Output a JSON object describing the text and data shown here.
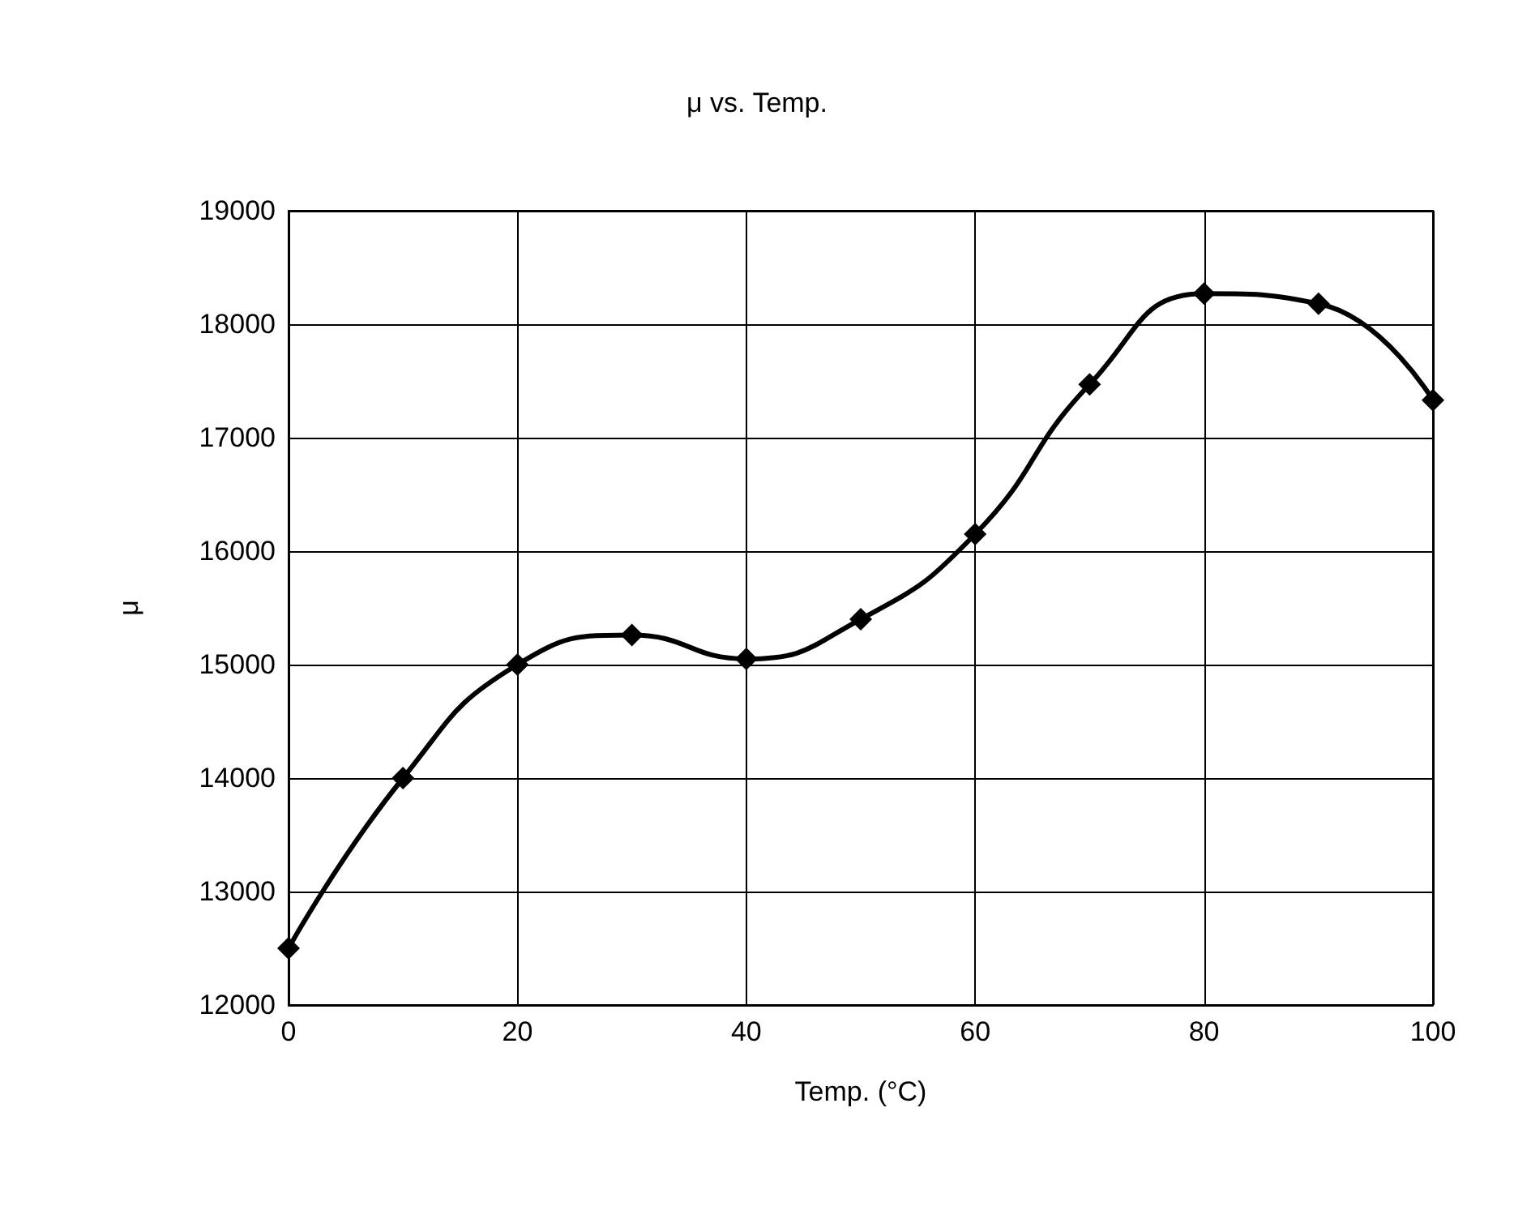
{
  "chart_data": {
    "type": "line",
    "title": "μ vs. Temp.",
    "xlabel": "Temp. (°C)",
    "ylabel": "μ",
    "x": [
      0,
      10,
      20,
      30,
      40,
      50,
      60,
      70,
      80,
      90,
      100
    ],
    "series": [
      {
        "color": "#000000",
        "values": [
          12500,
          14000,
          15000,
          15260,
          15050,
          15400,
          16150,
          17470,
          18270,
          18180,
          17330
        ]
      }
    ],
    "xlim": [
      0,
      100
    ],
    "xticks": [
      0,
      20,
      40,
      60,
      80,
      100
    ],
    "ylim": [
      12000,
      19000
    ],
    "yticks": [
      12000,
      13000,
      14000,
      15000,
      16000,
      17000,
      18000,
      19000
    ],
    "grid": true,
    "marker": "diamond",
    "line_style": "solid"
  }
}
